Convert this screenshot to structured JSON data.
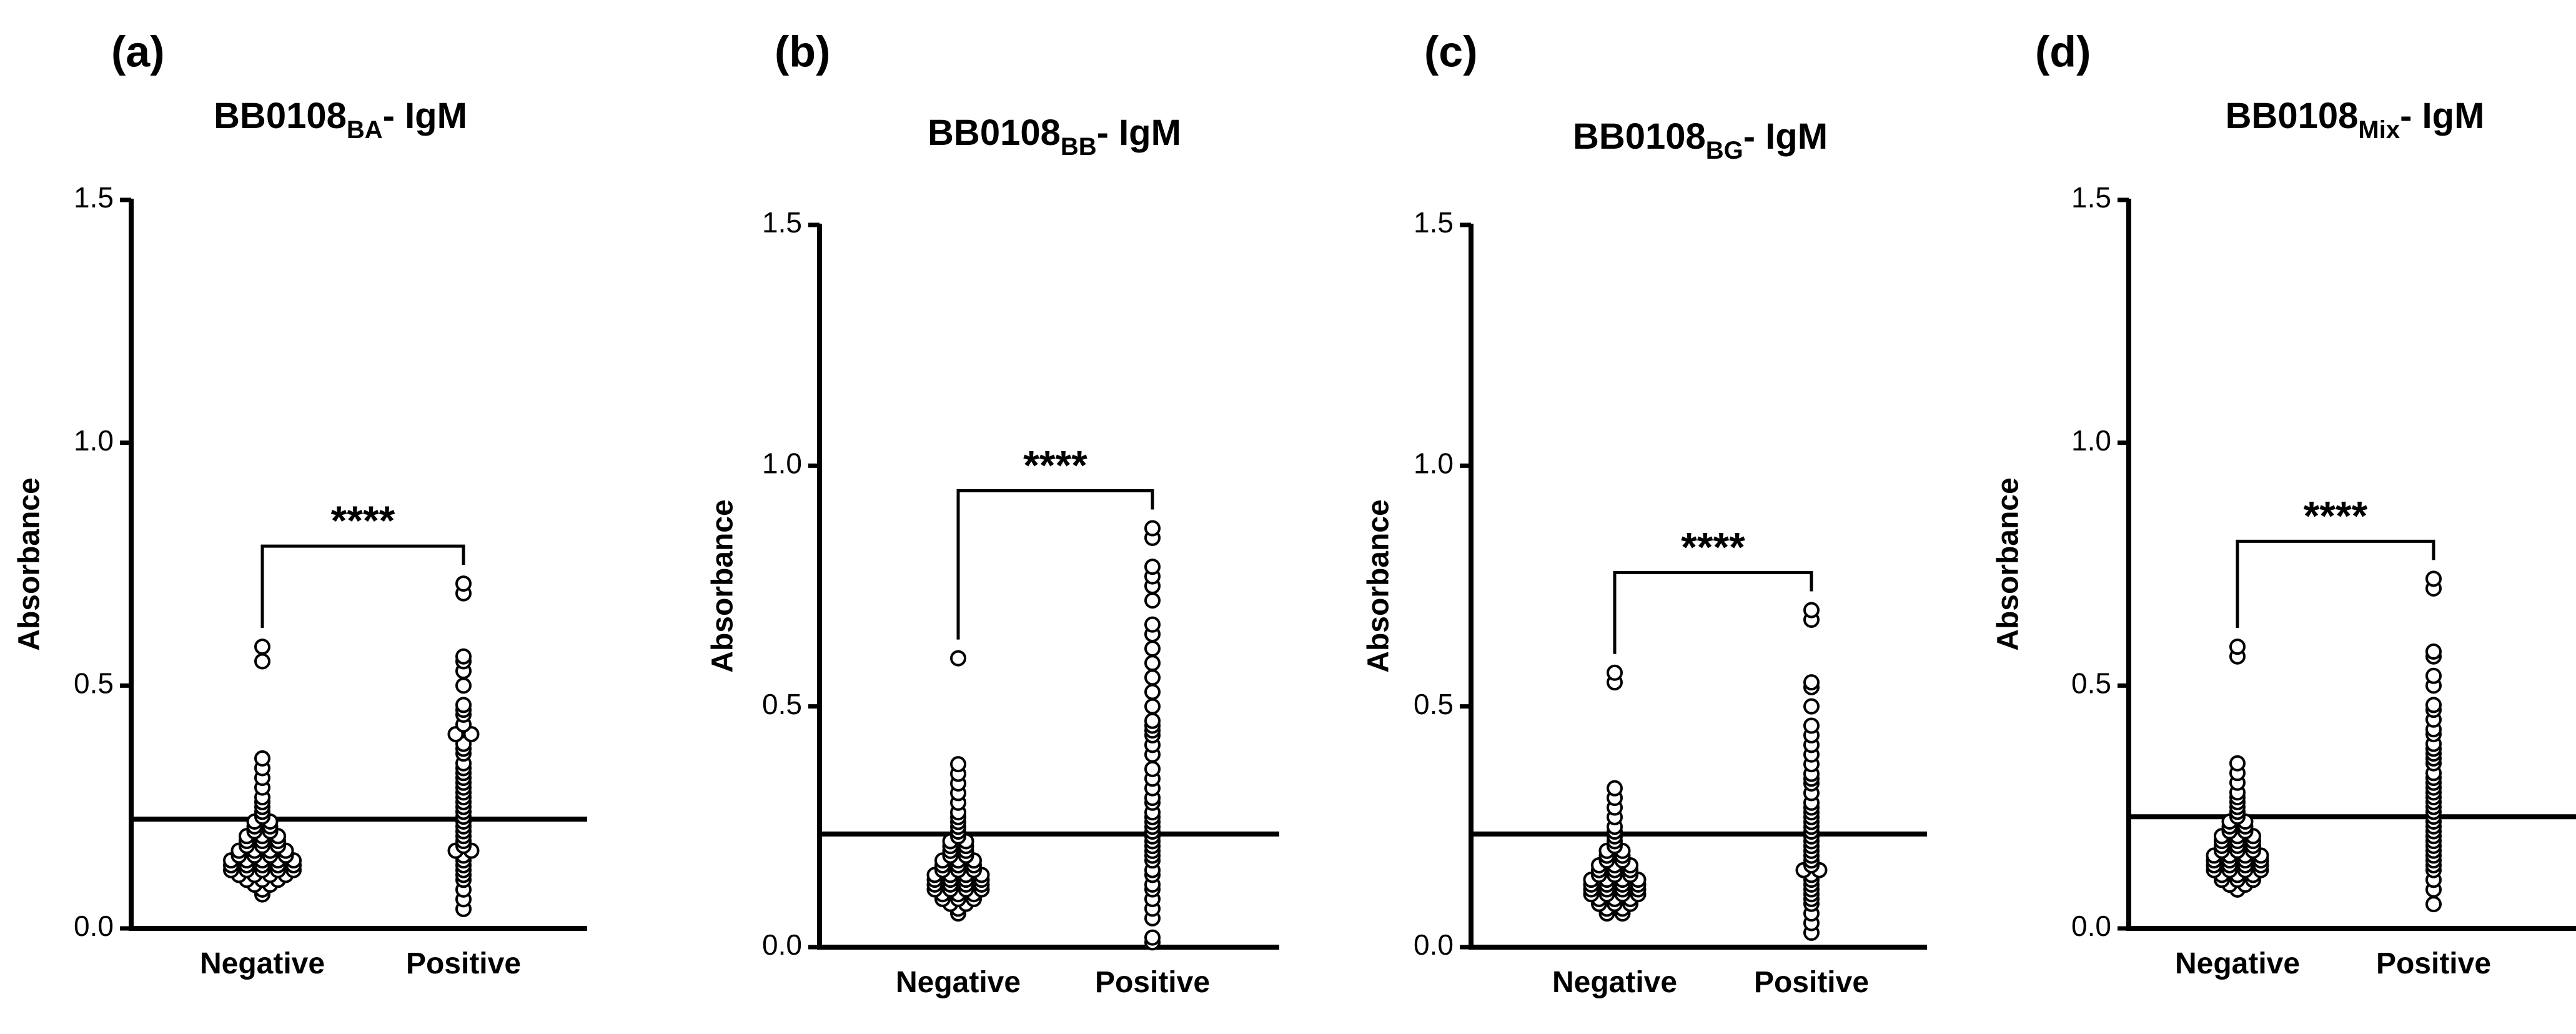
{
  "colors": {
    "axis": "#000000",
    "point_stroke": "#000000",
    "point_fill": "#ffffff",
    "background": "#ffffff"
  },
  "chart_data": [
    {
      "type": "scatter",
      "panel": "(a)",
      "title_main": "BB0108",
      "title_sub": "BA",
      "title_suffix": "- IgM",
      "ylabel": "Absorbance",
      "ylim": [
        0,
        1.5
      ],
      "yticks": [
        "0.0",
        "0.5",
        "1.0",
        "1.5"
      ],
      "categories": [
        "Negative",
        "Positive"
      ],
      "cutoff": 0.225,
      "significance": "****",
      "series": [
        {
          "name": "Negative",
          "values": [
            0.58,
            0.55,
            0.35,
            0.33,
            0.31,
            0.29,
            0.27,
            0.26,
            0.25,
            0.24,
            0.23,
            0.22,
            0.22,
            0.21,
            0.21,
            0.2,
            0.2,
            0.19,
            0.19,
            0.19,
            0.18,
            0.18,
            0.18,
            0.17,
            0.17,
            0.17,
            0.16,
            0.16,
            0.16,
            0.16,
            0.15,
            0.15,
            0.15,
            0.15,
            0.14,
            0.14,
            0.14,
            0.14,
            0.14,
            0.13,
            0.13,
            0.13,
            0.13,
            0.13,
            0.12,
            0.12,
            0.12,
            0.12,
            0.12,
            0.11,
            0.11,
            0.11,
            0.11,
            0.1,
            0.1,
            0.1,
            0.09,
            0.09,
            0.08,
            0.07
          ]
        },
        {
          "name": "Positive",
          "values": [
            0.71,
            0.69,
            0.56,
            0.55,
            0.53,
            0.5,
            0.46,
            0.45,
            0.44,
            0.42,
            0.4,
            0.4,
            0.38,
            0.37,
            0.36,
            0.34,
            0.33,
            0.32,
            0.31,
            0.3,
            0.29,
            0.28,
            0.27,
            0.26,
            0.25,
            0.24,
            0.23,
            0.22,
            0.21,
            0.2,
            0.19,
            0.18,
            0.17,
            0.16,
            0.16,
            0.15,
            0.14,
            0.13,
            0.12,
            0.11,
            0.1,
            0.08,
            0.06,
            0.04
          ]
        }
      ]
    },
    {
      "type": "scatter",
      "panel": "(b)",
      "title_main": "BB0108",
      "title_sub": "BB",
      "title_suffix": "- IgM",
      "ylabel": "Absorbance",
      "ylim": [
        0,
        1.5
      ],
      "yticks": [
        "0.0",
        "0.5",
        "1.0",
        "1.5"
      ],
      "categories": [
        "Negative",
        "Positive"
      ],
      "cutoff": 0.235,
      "significance": "****",
      "series": [
        {
          "name": "Negative",
          "values": [
            0.6,
            0.38,
            0.36,
            0.34,
            0.32,
            0.3,
            0.28,
            0.27,
            0.26,
            0.25,
            0.24,
            0.23,
            0.22,
            0.22,
            0.21,
            0.21,
            0.2,
            0.2,
            0.19,
            0.19,
            0.18,
            0.18,
            0.18,
            0.17,
            0.17,
            0.17,
            0.16,
            0.16,
            0.16,
            0.15,
            0.15,
            0.15,
            0.15,
            0.14,
            0.14,
            0.14,
            0.14,
            0.13,
            0.13,
            0.13,
            0.13,
            0.12,
            0.12,
            0.12,
            0.12,
            0.11,
            0.11,
            0.11,
            0.1,
            0.1,
            0.1,
            0.09,
            0.09,
            0.08,
            0.07
          ]
        },
        {
          "name": "Positive",
          "values": [
            0.87,
            0.85,
            0.79,
            0.77,
            0.75,
            0.72,
            0.67,
            0.65,
            0.62,
            0.59,
            0.56,
            0.53,
            0.5,
            0.47,
            0.46,
            0.45,
            0.44,
            0.42,
            0.4,
            0.37,
            0.35,
            0.33,
            0.31,
            0.3,
            0.28,
            0.27,
            0.26,
            0.25,
            0.24,
            0.23,
            0.22,
            0.21,
            0.2,
            0.19,
            0.18,
            0.16,
            0.15,
            0.13,
            0.12,
            0.1,
            0.08,
            0.06,
            0.02,
            0.01
          ]
        }
      ]
    },
    {
      "type": "scatter",
      "panel": "(c)",
      "title_main": "BB0108",
      "title_sub": "BG",
      "title_suffix": "- IgM",
      "ylabel": "Absorbance",
      "ylim": [
        0,
        1.5
      ],
      "yticks": [
        "0.0",
        "0.5",
        "1.0",
        "1.5"
      ],
      "categories": [
        "Negative",
        "Positive"
      ],
      "cutoff": 0.235,
      "significance": "****",
      "series": [
        {
          "name": "Negative",
          "values": [
            0.57,
            0.55,
            0.33,
            0.31,
            0.29,
            0.27,
            0.25,
            0.24,
            0.23,
            0.22,
            0.21,
            0.2,
            0.2,
            0.19,
            0.19,
            0.18,
            0.18,
            0.17,
            0.17,
            0.17,
            0.16,
            0.16,
            0.16,
            0.15,
            0.15,
            0.15,
            0.14,
            0.14,
            0.14,
            0.14,
            0.13,
            0.13,
            0.13,
            0.13,
            0.12,
            0.12,
            0.12,
            0.12,
            0.11,
            0.11,
            0.11,
            0.11,
            0.1,
            0.1,
            0.1,
            0.09,
            0.09,
            0.09,
            0.08,
            0.08,
            0.07,
            0.07
          ]
        },
        {
          "name": "Positive",
          "values": [
            0.7,
            0.68,
            0.55,
            0.54,
            0.5,
            0.46,
            0.44,
            0.42,
            0.4,
            0.38,
            0.36,
            0.35,
            0.34,
            0.32,
            0.3,
            0.29,
            0.28,
            0.27,
            0.26,
            0.25,
            0.24,
            0.23,
            0.22,
            0.21,
            0.2,
            0.19,
            0.18,
            0.17,
            0.16,
            0.16,
            0.15,
            0.14,
            0.13,
            0.12,
            0.11,
            0.1,
            0.09,
            0.07,
            0.05,
            0.03
          ]
        }
      ]
    },
    {
      "type": "scatter",
      "panel": "(d)",
      "title_main": "BB0108",
      "title_sub": "Mix",
      "title_suffix": "- IgM",
      "ylabel": "Absorbance",
      "ylim": [
        0,
        1.5
      ],
      "yticks": [
        "0.0",
        "0.5",
        "1.0",
        "1.5"
      ],
      "categories": [
        "Negative",
        "Positive"
      ],
      "cutoff": 0.23,
      "significance": "****",
      "series": [
        {
          "name": "Negative",
          "values": [
            0.58,
            0.56,
            0.34,
            0.32,
            0.3,
            0.28,
            0.27,
            0.26,
            0.25,
            0.24,
            0.23,
            0.22,
            0.22,
            0.21,
            0.21,
            0.2,
            0.2,
            0.19,
            0.19,
            0.19,
            0.18,
            0.18,
            0.18,
            0.17,
            0.17,
            0.17,
            0.16,
            0.16,
            0.16,
            0.15,
            0.15,
            0.15,
            0.15,
            0.14,
            0.14,
            0.14,
            0.14,
            0.13,
            0.13,
            0.13,
            0.13,
            0.12,
            0.12,
            0.12,
            0.12,
            0.11,
            0.11,
            0.11,
            0.1,
            0.1,
            0.1,
            0.09,
            0.09,
            0.08
          ]
        },
        {
          "name": "Positive",
          "values": [
            0.72,
            0.7,
            0.57,
            0.56,
            0.52,
            0.5,
            0.46,
            0.45,
            0.43,
            0.41,
            0.4,
            0.38,
            0.37,
            0.36,
            0.35,
            0.34,
            0.32,
            0.31,
            0.3,
            0.29,
            0.28,
            0.27,
            0.26,
            0.25,
            0.24,
            0.23,
            0.22,
            0.21,
            0.2,
            0.19,
            0.18,
            0.17,
            0.16,
            0.15,
            0.14,
            0.13,
            0.12,
            0.1,
            0.08,
            0.05
          ]
        }
      ]
    }
  ]
}
